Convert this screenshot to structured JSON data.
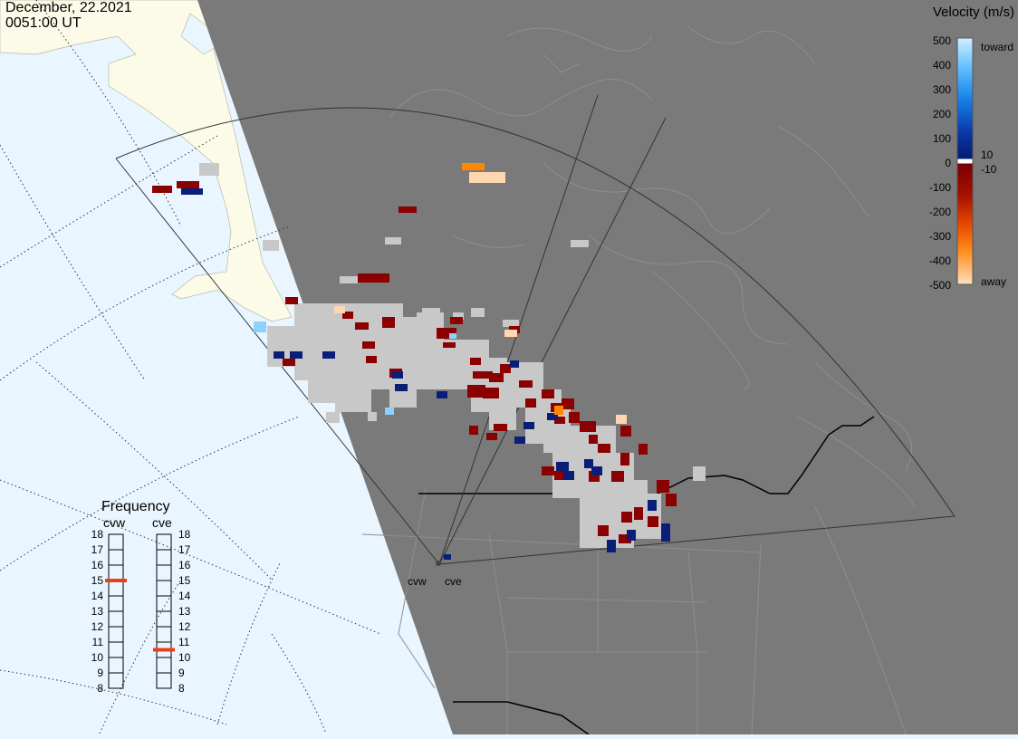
{
  "header": {
    "date": "December, 22.2021",
    "time": "0051:00 UT"
  },
  "colors": {
    "ocean": "#eaf6ff",
    "land_daylight": "#fbfbe8",
    "night_mask": "#7a7a7a",
    "ground_scatter": "#c8c8c8",
    "toward_dark": "#0a1e78",
    "toward_light": "#8fd0ff",
    "away_dark": "#8b0000",
    "away_orange": "#ff8800",
    "away_light": "#ffd6b0",
    "marker": "#e8401c"
  },
  "velocity_legend": {
    "title": "Velocity (m/s)",
    "toward_label": "toward",
    "away_label": "away",
    "ticks": [
      "500",
      "400",
      "300",
      "200",
      "100",
      "0",
      "-100",
      "-200",
      "-300",
      "-400",
      "-500"
    ],
    "threshold_pos": "10",
    "threshold_neg": "-10"
  },
  "frequency_panel": {
    "title": "Frequency",
    "radars": [
      {
        "label": "cvw",
        "freq_mhz": 15
      },
      {
        "label": "cve",
        "freq_mhz": 10.5
      }
    ],
    "ticks": [
      "18",
      "17",
      "16",
      "15",
      "14",
      "13",
      "12",
      "11",
      "10",
      "9",
      "8"
    ]
  },
  "radar_sites": {
    "cvw_label": "cvw",
    "cve_label": "cve"
  }
}
